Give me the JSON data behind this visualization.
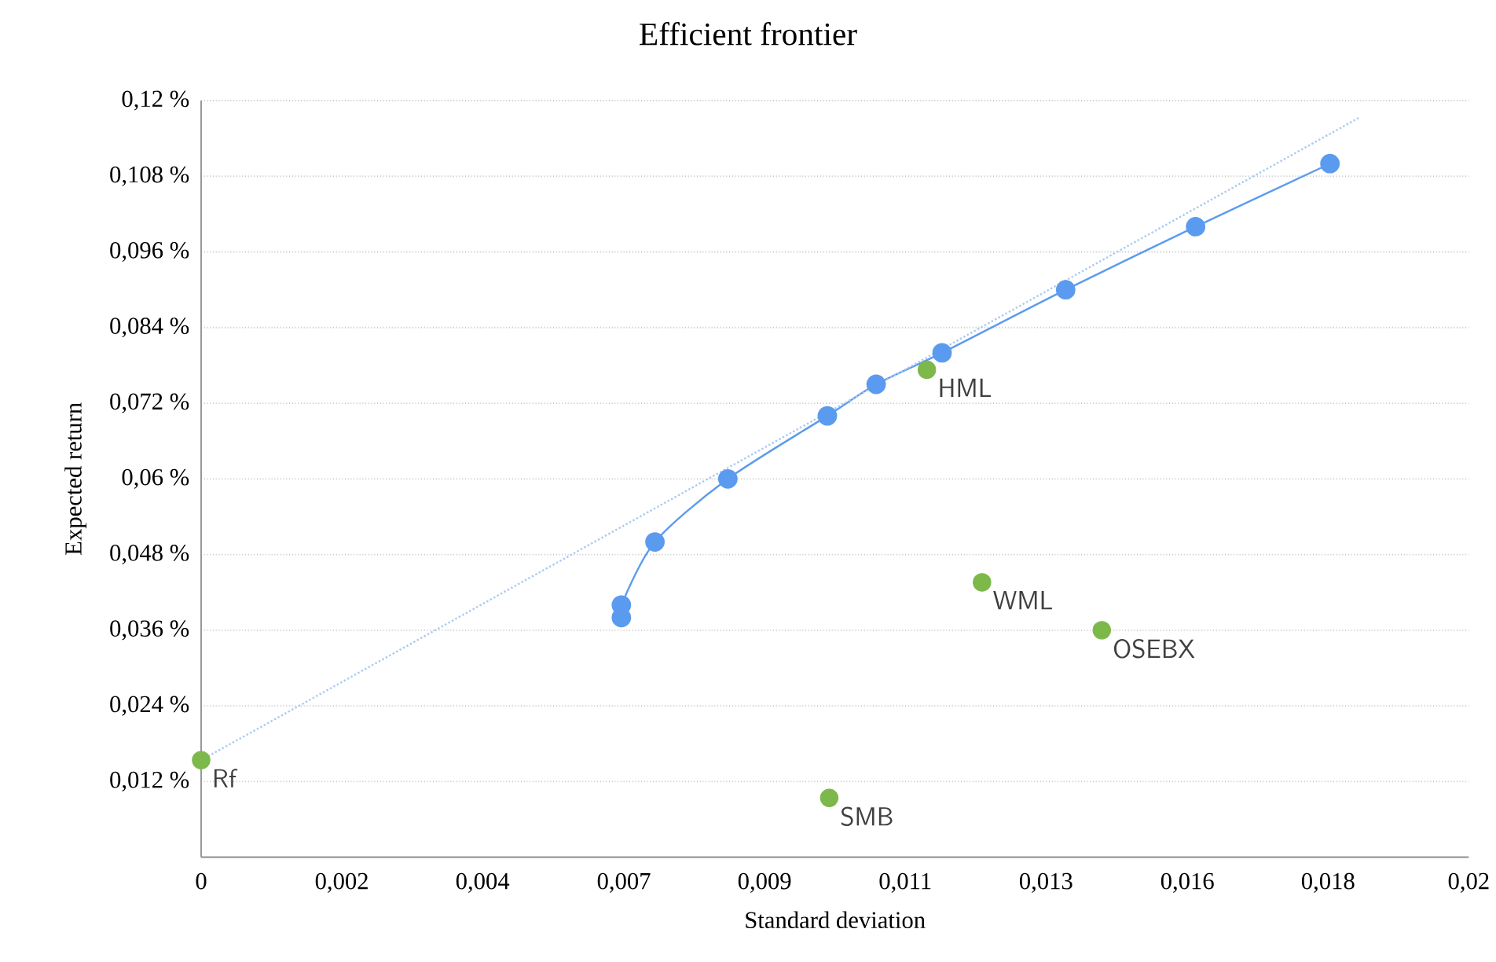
{
  "chart_data": {
    "type": "scatter",
    "title": "Efficient frontier",
    "xlabel": "Standard deviation",
    "ylabel": "Expected return",
    "xlim": [
      0,
      0.02
    ],
    "ylim": [
      0,
      0.12
    ],
    "xticks": [
      {
        "value": 0,
        "label": "0"
      },
      {
        "value": 0.00222,
        "label": "0,002"
      },
      {
        "value": 0.00444,
        "label": "0,004"
      },
      {
        "value": 0.00667,
        "label": "0,007"
      },
      {
        "value": 0.00889,
        "label": "0,009"
      },
      {
        "value": 0.01111,
        "label": "0,011"
      },
      {
        "value": 0.01333,
        "label": "0,013"
      },
      {
        "value": 0.01556,
        "label": "0,016"
      },
      {
        "value": 0.01778,
        "label": "0,018"
      },
      {
        "value": 0.02,
        "label": "0,02"
      }
    ],
    "yticks": [
      {
        "value": 0.012,
        "label": "0,012 %"
      },
      {
        "value": 0.024,
        "label": "0,024 %"
      },
      {
        "value": 0.036,
        "label": "0,036 %"
      },
      {
        "value": 0.048,
        "label": "0,048 %"
      },
      {
        "value": 0.06,
        "label": "0,06 %"
      },
      {
        "value": 0.072,
        "label": "0,072 %"
      },
      {
        "value": 0.084,
        "label": "0,084 %"
      },
      {
        "value": 0.096,
        "label": "0,096 %"
      },
      {
        "value": 0.108,
        "label": "0,108 %"
      },
      {
        "value": 0.12,
        "label": "0,12 %"
      }
    ],
    "grid": "y",
    "series": [
      {
        "type": "line",
        "color": "#5b9bef",
        "marker": "circle",
        "line_style": "solid",
        "x": [
          0.00663,
          0.00663,
          0.00716,
          0.00831,
          0.00988,
          0.01065,
          0.01169,
          0.01364,
          0.01569,
          0.01781
        ],
        "values": [
          0.038,
          0.04,
          0.05,
          0.06,
          0.07,
          0.075,
          0.08,
          0.09,
          0.1,
          0.11
        ]
      },
      {
        "type": "line",
        "color": "#a9c9f2",
        "marker": "none",
        "line_style": "dotted",
        "x": [
          0,
          0.01827
        ],
        "values": [
          0.0154,
          0.1173
        ]
      },
      {
        "color": "#7cb84a",
        "marker": "circle",
        "x": [
          0,
          0.00991,
          0.01145,
          0.01232,
          0.01421
        ],
        "values": [
          0.0154,
          0.0094,
          0.0773,
          0.0436,
          0.036
        ]
      }
    ],
    "annotations": [
      {
        "text": "Rf",
        "x": 0,
        "y": 0.0154
      },
      {
        "text": "SMB",
        "x": 0.00991,
        "y": 0.0094
      },
      {
        "text": "HML",
        "x": 0.01145,
        "y": 0.0773
      },
      {
        "text": "WML",
        "x": 0.01232,
        "y": 0.0436
      },
      {
        "text": "OSEBX",
        "x": 0.01421,
        "y": 0.036
      }
    ]
  }
}
